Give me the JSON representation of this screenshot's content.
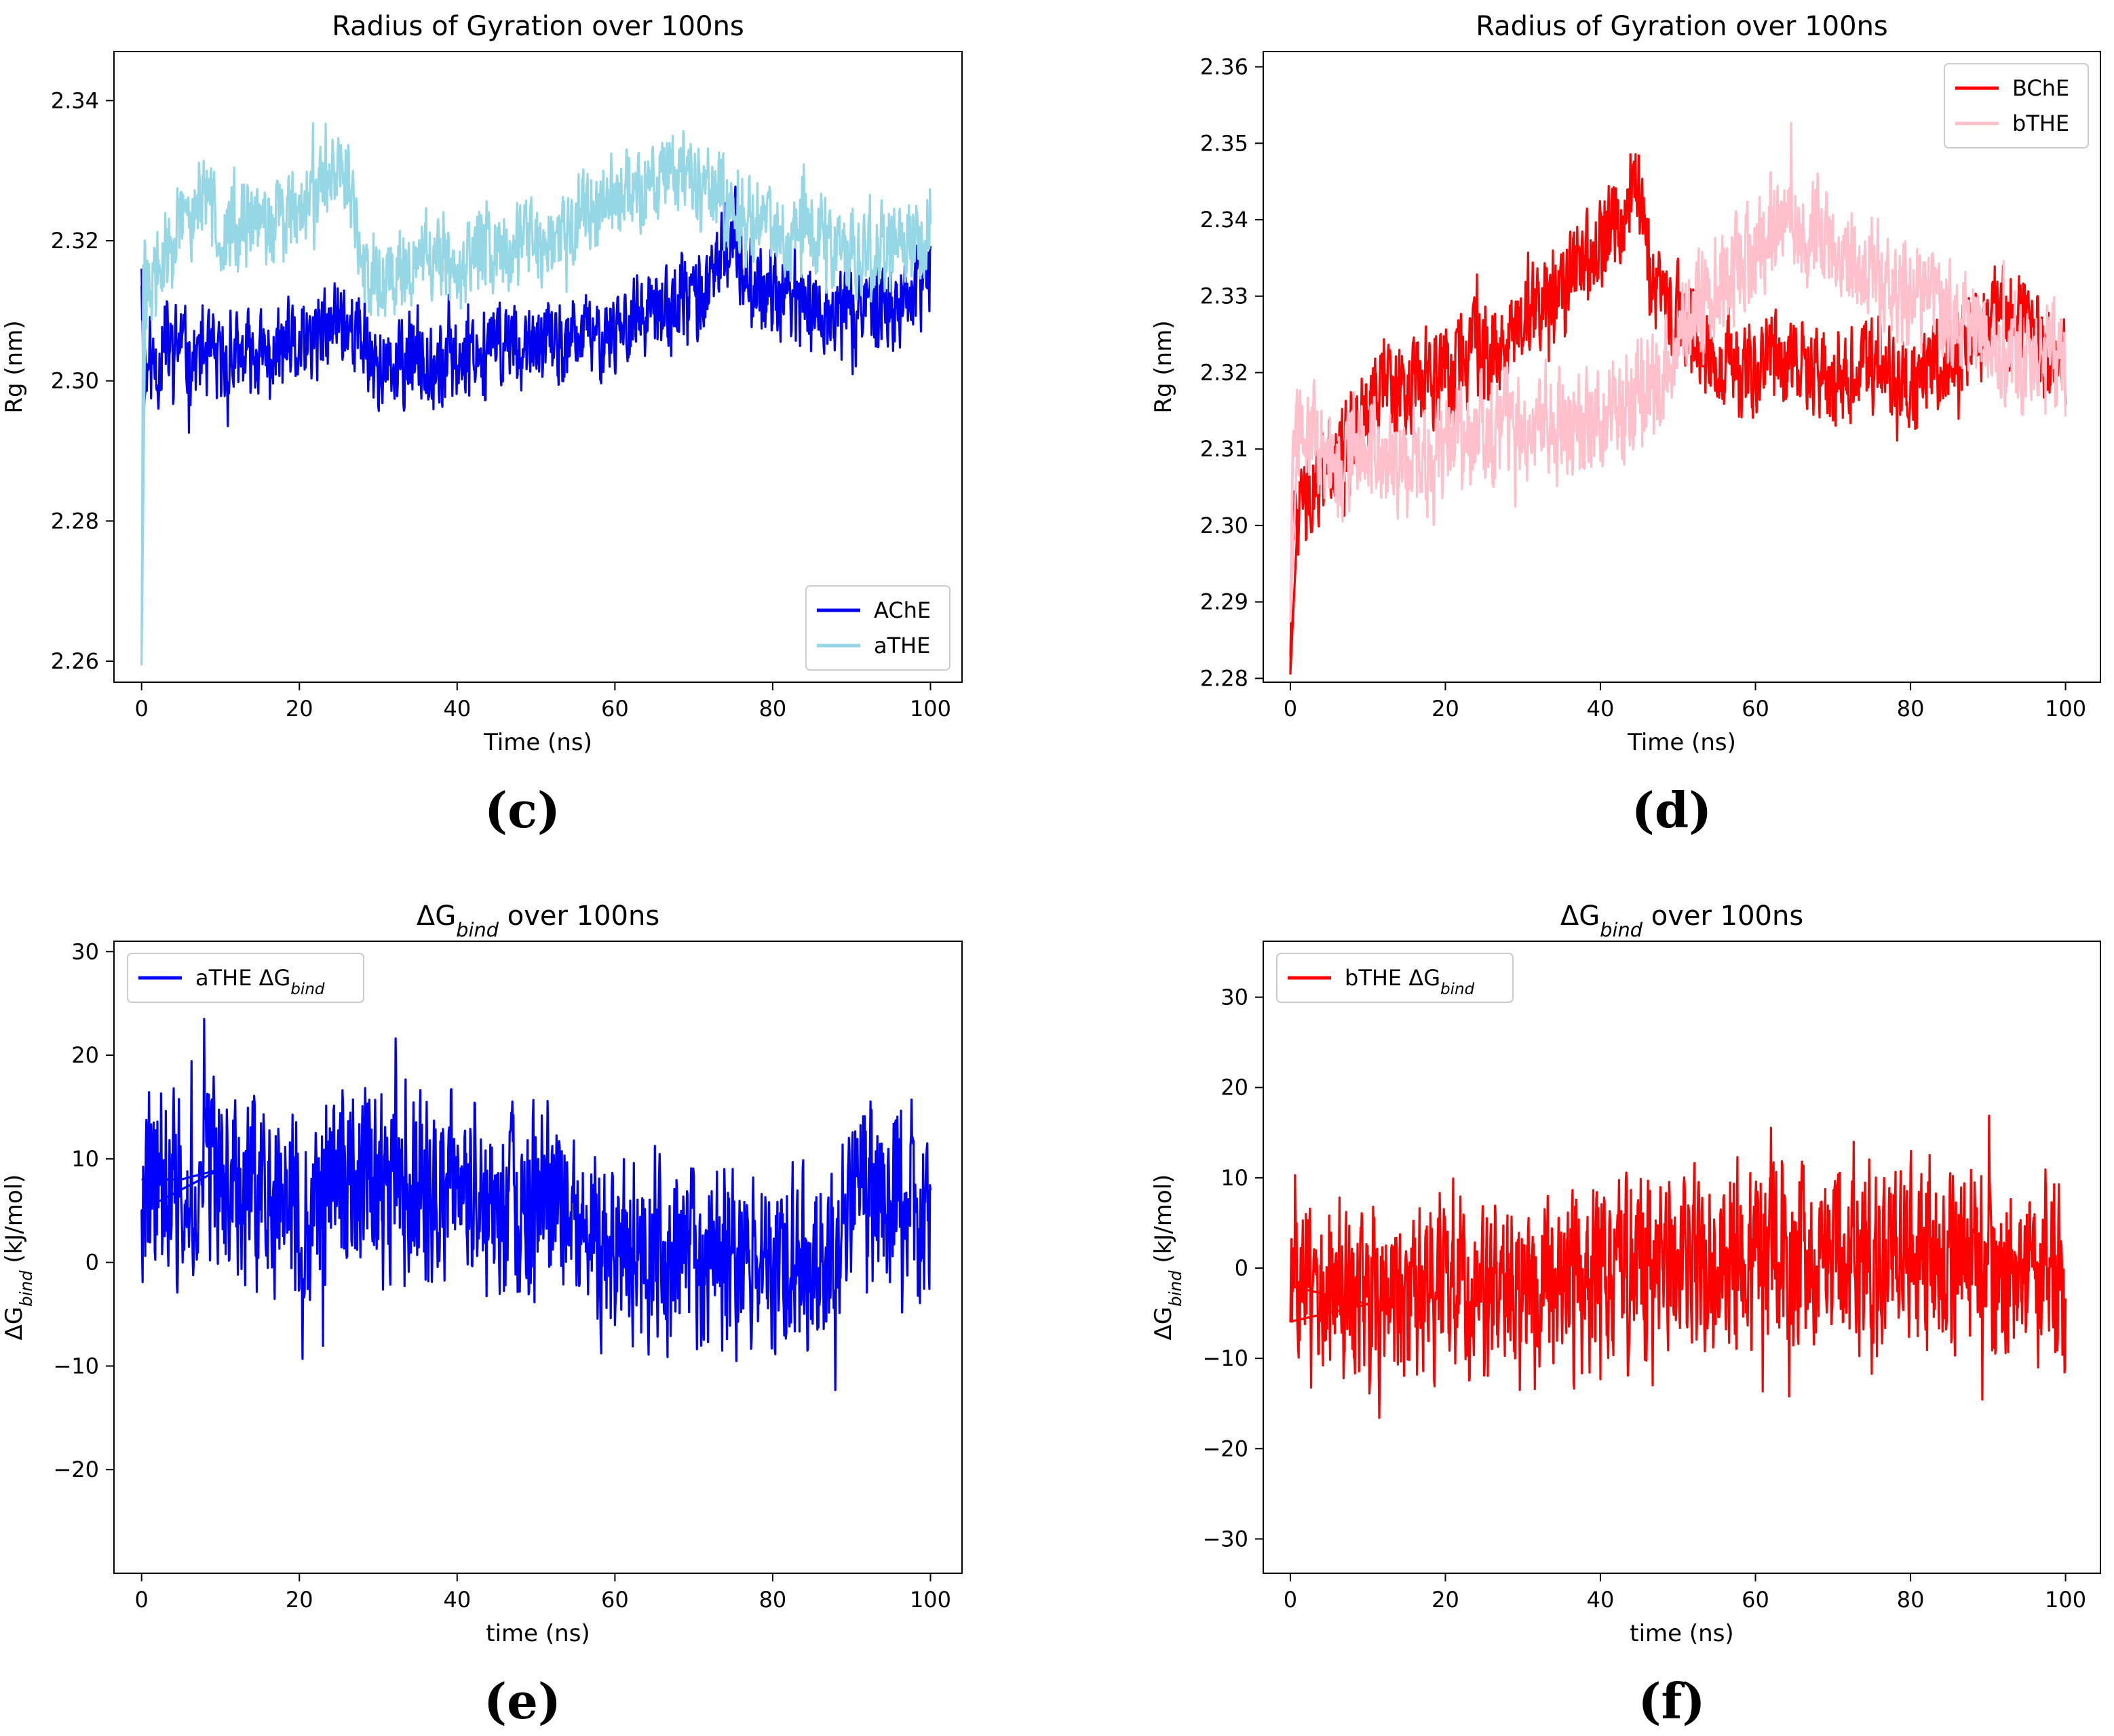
{
  "chart_data": [
    {
      "id": "c",
      "type": "line",
      "title": "Radius of Gyration over 100ns",
      "xlabel": "Time (ns)",
      "ylabel": "Rg (nm)",
      "xlim": [
        -3.5,
        104
      ],
      "ylim": [
        2.257,
        2.347
      ],
      "xticks": [
        0,
        20,
        40,
        60,
        80,
        100
      ],
      "yticks": [
        2.26,
        2.28,
        2.3,
        2.32,
        2.34
      ],
      "ytick_labels": [
        "2.26",
        "2.28",
        "2.30",
        "2.32",
        "2.34"
      ],
      "legend": "bottom-right",
      "panel_label": "(c)",
      "series": [
        {
          "name": "AChE",
          "color": "#0000ee",
          "x": [
            0,
            0.3,
            0.6,
            1,
            2,
            3,
            4,
            5,
            6,
            8,
            10,
            12,
            14,
            16,
            18,
            20,
            22,
            24,
            25,
            26,
            28,
            30,
            32,
            34,
            36,
            38,
            40,
            42,
            44,
            46,
            48,
            50,
            52,
            54,
            56,
            58,
            60,
            62,
            64,
            66,
            68,
            70,
            72,
            74,
            75,
            76,
            78,
            80,
            82,
            84,
            86,
            88,
            90,
            92,
            94,
            96,
            98,
            100
          ],
          "y": [
            2.316,
            2.296,
            2.301,
            2.303,
            2.302,
            2.305,
            2.304,
            2.306,
            2.303,
            2.304,
            2.302,
            2.303,
            2.304,
            2.303,
            2.305,
            2.304,
            2.306,
            2.307,
            2.31,
            2.308,
            2.306,
            2.302,
            2.301,
            2.303,
            2.304,
            2.302,
            2.303,
            2.305,
            2.304,
            2.306,
            2.305,
            2.304,
            2.306,
            2.304,
            2.307,
            2.306,
            2.308,
            2.309,
            2.309,
            2.31,
            2.311,
            2.312,
            2.313,
            2.319,
            2.322,
            2.317,
            2.313,
            2.312,
            2.313,
            2.311,
            2.31,
            2.309,
            2.311,
            2.312,
            2.31,
            2.311,
            2.312,
            2.316
          ],
          "spread": 0.0075
        },
        {
          "name": "aTHE",
          "color": "#96d7e6",
          "x": [
            0,
            0.2,
            0.5,
            1,
            2,
            3,
            4,
            5,
            6,
            8,
            10,
            12,
            14,
            16,
            18,
            20,
            22,
            24,
            25,
            26,
            27,
            28,
            30,
            32,
            34,
            36,
            38,
            40,
            42,
            44,
            46,
            48,
            50,
            52,
            54,
            56,
            58,
            60,
            62,
            64,
            66,
            68,
            70,
            72,
            74,
            76,
            78,
            80,
            82,
            84,
            86,
            88,
            90,
            92,
            94,
            96,
            98,
            100
          ],
          "y": [
            2.262,
            2.312,
            2.314,
            2.313,
            2.315,
            2.318,
            2.32,
            2.322,
            2.324,
            2.326,
            2.322,
            2.32,
            2.323,
            2.322,
            2.324,
            2.325,
            2.327,
            2.33,
            2.332,
            2.329,
            2.322,
            2.318,
            2.314,
            2.316,
            2.318,
            2.319,
            2.317,
            2.316,
            2.318,
            2.319,
            2.318,
            2.319,
            2.32,
            2.321,
            2.322,
            2.324,
            2.325,
            2.326,
            2.328,
            2.327,
            2.329,
            2.33,
            2.328,
            2.327,
            2.325,
            2.323,
            2.322,
            2.323,
            2.321,
            2.322,
            2.32,
            2.319,
            2.318,
            2.318,
            2.319,
            2.32,
            2.321,
            2.32
          ],
          "spread": 0.0075
        }
      ]
    },
    {
      "id": "d",
      "type": "line",
      "title": "Radius of Gyration over 100ns",
      "xlabel": "Time (ns)",
      "ylabel": "Rg (nm)",
      "xlim": [
        -3.5,
        104.5
      ],
      "ylim": [
        2.2795,
        2.362
      ],
      "xticks": [
        0,
        20,
        40,
        60,
        80,
        100
      ],
      "yticks": [
        2.28,
        2.29,
        2.3,
        2.31,
        2.32,
        2.33,
        2.34,
        2.35,
        2.36
      ],
      "ytick_labels": [
        "2.28",
        "2.29",
        "2.30",
        "2.31",
        "2.32",
        "2.33",
        "2.34",
        "2.35",
        "2.36"
      ],
      "legend": "top-right",
      "panel_label": "(d)",
      "series": [
        {
          "name": "BChE",
          "color": "#ff0000",
          "x": [
            0,
            0.3,
            1,
            2,
            4,
            6,
            8,
            10,
            12,
            14,
            16,
            18,
            20,
            22,
            24,
            26,
            28,
            30,
            32,
            34,
            36,
            38,
            40,
            42,
            44,
            45,
            46,
            48,
            50,
            52,
            54,
            56,
            58,
            60,
            62,
            64,
            66,
            68,
            70,
            72,
            74,
            76,
            78,
            80,
            82,
            84,
            86,
            88,
            90,
            92,
            94,
            96,
            98,
            100
          ],
          "y": [
            2.283,
            2.3,
            2.302,
            2.304,
            2.306,
            2.308,
            2.312,
            2.316,
            2.318,
            2.317,
            2.318,
            2.319,
            2.319,
            2.322,
            2.323,
            2.321,
            2.324,
            2.327,
            2.329,
            2.331,
            2.332,
            2.334,
            2.336,
            2.339,
            2.343,
            2.345,
            2.335,
            2.33,
            2.328,
            2.325,
            2.322,
            2.321,
            2.32,
            2.32,
            2.321,
            2.322,
            2.321,
            2.32,
            2.319,
            2.319,
            2.32,
            2.321,
            2.319,
            2.318,
            2.32,
            2.321,
            2.323,
            2.325,
            2.327,
            2.328,
            2.326,
            2.325,
            2.322,
            2.321
          ],
          "spread": 0.0075
        },
        {
          "name": "bTHE",
          "color": "#ffc0cb",
          "x": [
            0,
            0.3,
            1,
            2,
            4,
            6,
            8,
            10,
            12,
            14,
            16,
            18,
            19.5,
            20,
            22,
            24,
            26,
            28,
            30,
            32,
            34,
            36,
            38,
            40,
            42,
            44,
            46,
            48,
            50,
            52,
            54,
            56,
            58,
            60,
            62,
            64,
            66,
            68,
            70,
            72,
            74,
            76,
            78,
            80,
            82,
            84,
            86,
            88,
            90,
            92,
            94,
            96,
            98,
            100
          ],
          "y": [
            2.29,
            2.311,
            2.313,
            2.312,
            2.311,
            2.308,
            2.309,
            2.31,
            2.309,
            2.308,
            2.309,
            2.308,
            2.309,
            2.311,
            2.312,
            2.313,
            2.312,
            2.313,
            2.312,
            2.313,
            2.313,
            2.314,
            2.313,
            2.314,
            2.315,
            2.316,
            2.318,
            2.32,
            2.324,
            2.328,
            2.33,
            2.332,
            2.334,
            2.336,
            2.338,
            2.34,
            2.339,
            2.338,
            2.337,
            2.336,
            2.334,
            2.332,
            2.331,
            2.33,
            2.33,
            2.328,
            2.327,
            2.326,
            2.324,
            2.323,
            2.322,
            2.321,
            2.323,
            2.322
          ],
          "spread": 0.0085
        }
      ]
    },
    {
      "id": "e",
      "type": "line",
      "title_parts": {
        "delta": "ΔG",
        "sub": "bind",
        "rest": " over 100ns"
      },
      "xlabel": "time (ns)",
      "ylabel_parts": {
        "delta": "ΔG",
        "sub": "bind",
        "rest": " (kJ/mol)"
      },
      "xlim": [
        -3.5,
        104
      ],
      "ylim": [
        -30,
        31
      ],
      "xticks": [
        0,
        20,
        40,
        60,
        80,
        100
      ],
      "yticks": [
        -20,
        -10,
        0,
        10,
        20,
        30
      ],
      "ytick_labels": [
        "−20",
        "−10",
        "0",
        "10",
        "20",
        "30"
      ],
      "legend": "top-left",
      "panel_label": "(e)",
      "series": [
        {
          "name": "aTHE",
          "legend_parts": {
            "name": "aTHE ",
            "delta": "ΔG",
            "sub": "bind"
          },
          "color": "#0000ff",
          "x": [
            0,
            5,
            10,
            15,
            20,
            21,
            25,
            30,
            35,
            40,
            45,
            50,
            55,
            56,
            57,
            60,
            65,
            70,
            75,
            80,
            85,
            88,
            89,
            90,
            95,
            98,
            100
          ],
          "y": [
            8,
            8,
            9,
            7,
            6,
            4,
            8,
            8,
            7,
            7,
            6,
            6,
            5,
            2,
            1,
            0,
            1,
            0,
            0,
            1,
            0,
            -1,
            5,
            8,
            7,
            4,
            3
          ],
          "spread": 11
        }
      ]
    },
    {
      "id": "f",
      "type": "line",
      "title_parts": {
        "delta": "ΔG",
        "sub": "bind",
        "rest": " over 100ns"
      },
      "xlabel": "time (ns)",
      "ylabel_parts": {
        "delta": "ΔG",
        "sub": "bind",
        "rest": " (kJ/mol)"
      },
      "xlim": [
        -3.5,
        104.5
      ],
      "ylim": [
        -33.8,
        36.2
      ],
      "xticks": [
        0,
        20,
        40,
        60,
        80,
        100
      ],
      "yticks": [
        -30,
        -20,
        -10,
        0,
        10,
        20,
        30
      ],
      "ytick_labels": [
        "−30",
        "−20",
        "−10",
        "0",
        "10",
        "20",
        "30"
      ],
      "legend": "top-left",
      "panel_label": "(f)",
      "series": [
        {
          "name": "bTHE",
          "legend_parts": {
            "name": "bTHE ",
            "delta": "ΔG",
            "sub": "bind"
          },
          "color": "#ff0000",
          "x": [
            0,
            5,
            10,
            15,
            20,
            25,
            30,
            35,
            40,
            45,
            50,
            55,
            60,
            65,
            70,
            75,
            80,
            85,
            90,
            95,
            100
          ],
          "y": [
            -2,
            -3,
            -4,
            -3,
            -2,
            -2,
            -3,
            -2,
            -1,
            0,
            0,
            0,
            1,
            1,
            1,
            1,
            2,
            1,
            1,
            0,
            0
          ],
          "spread": 12
        }
      ]
    }
  ]
}
